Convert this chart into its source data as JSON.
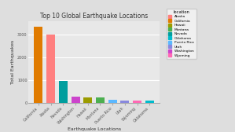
{
  "categories": [
    "California",
    "Alaska",
    "Nevada",
    "Washington",
    "Hawaii",
    "Montana",
    "Puerto Rico",
    "Utah",
    "Wyoming",
    "Oklahoma"
  ],
  "values": [
    3350,
    3000,
    970,
    290,
    255,
    240,
    155,
    110,
    90,
    90
  ],
  "bar_colors": [
    "#E07B00",
    "#FF7F7F",
    "#009E9E",
    "#CC44CC",
    "#9B9B00",
    "#4CAF50",
    "#5BB8FF",
    "#8888DD",
    "#FF69B4",
    "#00BBCC"
  ],
  "title": "Top 10 Global Earthquake Locations",
  "xlabel": "Earthquake Locations",
  "ylabel": "Total Earthquakes",
  "ylim": [
    0,
    3600
  ],
  "background_color": "#DEDEDE",
  "plot_bg_color": "#E8E8E8",
  "grid_color": "#FFFFFF",
  "legend_labels": [
    "Alaska",
    "California",
    "Hawaii",
    "Montana",
    "Nevada",
    "Oklahoma",
    "Puerto Rico",
    "Utah",
    "Washington",
    "Wyoming"
  ],
  "legend_colors": [
    "#FF7F7F",
    "#E07B00",
    "#9B9B00",
    "#4CAF50",
    "#009E9E",
    "#00BBCC",
    "#5BB8FF",
    "#8888DD",
    "#CC44CC",
    "#FF69B4"
  ]
}
